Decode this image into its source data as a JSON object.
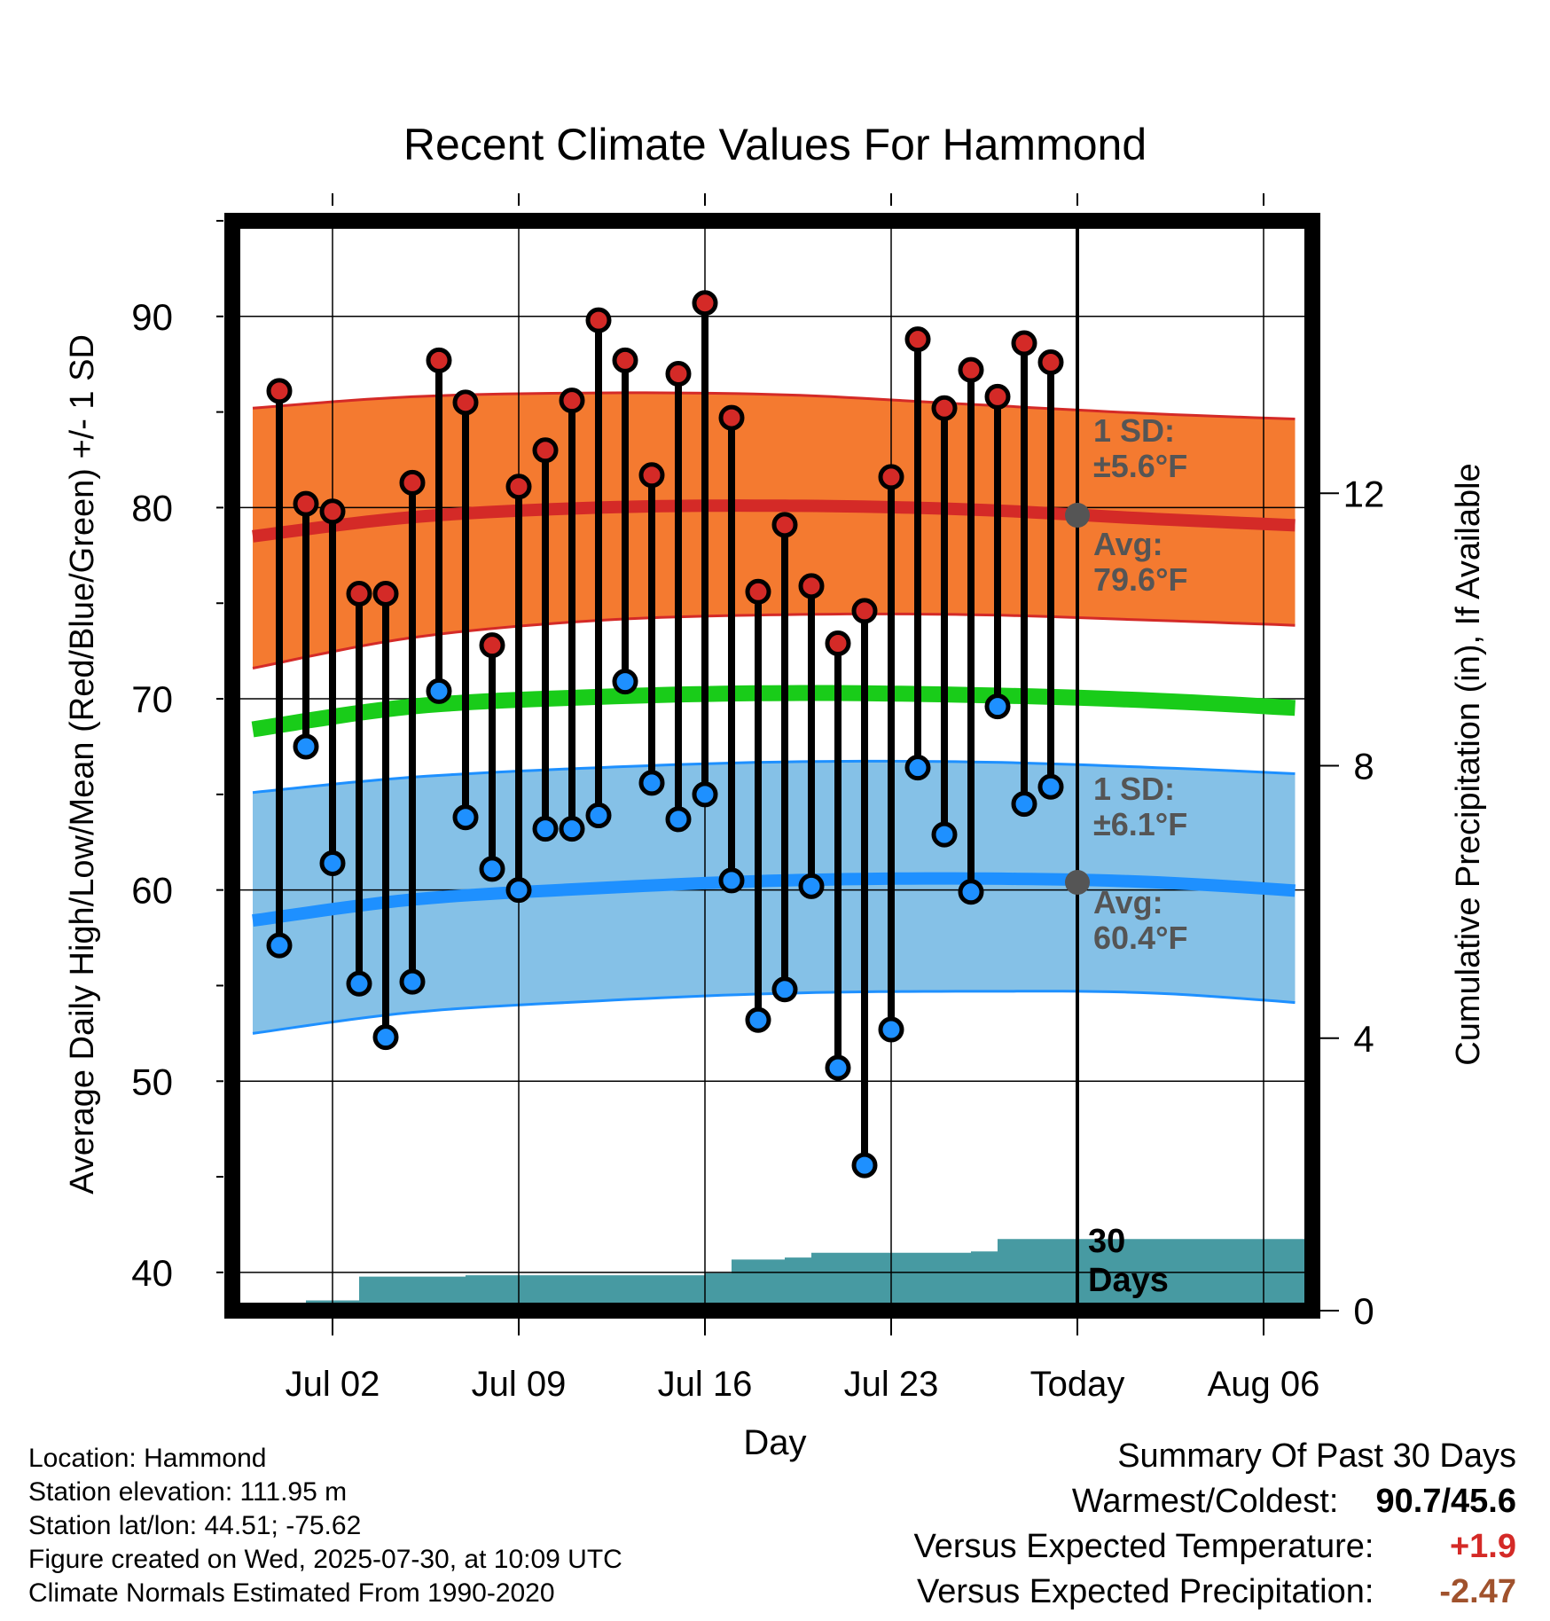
{
  "chart_data": {
    "type": "range-bar",
    "title": "Recent Climate Values For Hammond",
    "xlabel": "Day",
    "ylabel_left": "Average Daily High/Low/Mean (Red/Blue/Green) +/- 1 SD",
    "ylabel_right": "Cumulative Precipitation (in), If Available",
    "x_ticks": [
      "Jul 02",
      "Jul 09",
      "Jul 16",
      "Jul 23",
      "Today",
      "Aug 06"
    ],
    "ylim_left": [
      38,
      95
    ],
    "yticks_left": [
      40,
      50,
      60,
      70,
      80,
      90
    ],
    "ylim_right": [
      0,
      16
    ],
    "yticks_right": [
      0,
      4,
      8,
      12
    ],
    "grid": true,
    "x_start": "2025-06-29",
    "x_end": "2025-08-10",
    "today": "2025-07-30",
    "daily": {
      "dates": [
        "2025-06-30",
        "2025-07-01",
        "2025-07-02",
        "2025-07-03",
        "2025-07-04",
        "2025-07-05",
        "2025-07-06",
        "2025-07-07",
        "2025-07-08",
        "2025-07-09",
        "2025-07-10",
        "2025-07-11",
        "2025-07-12",
        "2025-07-13",
        "2025-07-14",
        "2025-07-15",
        "2025-07-16",
        "2025-07-17",
        "2025-07-18",
        "2025-07-19",
        "2025-07-20",
        "2025-07-21",
        "2025-07-22",
        "2025-07-23",
        "2025-07-24",
        "2025-07-25",
        "2025-07-26",
        "2025-07-27",
        "2025-07-28",
        "2025-07-29"
      ],
      "high": [
        86.1,
        80.2,
        79.8,
        75.5,
        75.5,
        81.3,
        87.7,
        85.5,
        72.8,
        81.1,
        83.0,
        85.6,
        89.8,
        87.7,
        81.7,
        87.0,
        90.7,
        84.7,
        75.6,
        79.1,
        75.9,
        72.9,
        74.6,
        81.6,
        88.8,
        85.2,
        87.2,
        85.8,
        88.6,
        87.6
      ],
      "low": [
        57.1,
        67.5,
        61.4,
        55.1,
        52.3,
        55.2,
        70.4,
        63.8,
        61.1,
        60.0,
        63.2,
        63.2,
        63.9,
        70.9,
        65.6,
        63.7,
        65.0,
        60.5,
        53.2,
        54.8,
        60.2,
        50.7,
        45.6,
        52.7,
        66.4,
        62.9,
        59.9,
        69.6,
        64.5,
        65.4
      ]
    },
    "normals": {
      "dates": [
        "2025-06-29",
        "2025-07-05",
        "2025-07-12",
        "2025-07-19",
        "2025-07-26",
        "2025-08-02",
        "2025-08-10"
      ],
      "high_avg": [
        78.5,
        79.5,
        80.0,
        80.1,
        79.9,
        79.4,
        78.9
      ],
      "high_upper": [
        85.2,
        85.8,
        86.0,
        85.9,
        85.4,
        84.9,
        84.5
      ],
      "high_lower": [
        71.6,
        73.2,
        74.1,
        74.4,
        74.4,
        74.1,
        73.7
      ],
      "mean_avg": [
        68.4,
        69.6,
        70.1,
        70.3,
        70.2,
        69.9,
        69.3
      ],
      "low_avg": [
        58.4,
        59.5,
        60.1,
        60.5,
        60.6,
        60.4,
        59.7
      ],
      "low_upper": [
        65.1,
        65.9,
        66.4,
        66.7,
        66.7,
        66.4,
        65.9
      ],
      "low_lower": [
        52.5,
        53.6,
        54.2,
        54.6,
        54.7,
        54.6,
        53.8
      ]
    },
    "precip_cumulative": {
      "dates": [
        "2025-06-30",
        "2025-07-01",
        "2025-07-02",
        "2025-07-03",
        "2025-07-04",
        "2025-07-05",
        "2025-07-06",
        "2025-07-07",
        "2025-07-08",
        "2025-07-09",
        "2025-07-10",
        "2025-07-11",
        "2025-07-12",
        "2025-07-13",
        "2025-07-14",
        "2025-07-15",
        "2025-07-16",
        "2025-07-17",
        "2025-07-18",
        "2025-07-19",
        "2025-07-20",
        "2025-07-21",
        "2025-07-22",
        "2025-07-23",
        "2025-07-24",
        "2025-07-25",
        "2025-07-26",
        "2025-07-27",
        "2025-07-28",
        "2025-07-29",
        "2025-07-30",
        "2025-08-10"
      ],
      "values": [
        0.0,
        0.15,
        0.15,
        0.5,
        0.5,
        0.5,
        0.5,
        0.52,
        0.52,
        0.52,
        0.52,
        0.52,
        0.52,
        0.52,
        0.52,
        0.52,
        0.55,
        0.75,
        0.75,
        0.78,
        0.85,
        0.85,
        0.85,
        0.85,
        0.85,
        0.85,
        0.87,
        1.05,
        1.05,
        1.05,
        1.05,
        1.05
      ]
    },
    "annotations": {
      "high_sd_label": "1 SD:",
      "high_sd_value": "±5.6°F",
      "high_avg_label": "Avg:",
      "high_avg_value": "79.6°F",
      "low_sd_label": "1 SD:",
      "low_sd_value": "±6.1°F",
      "low_avg_label": "Avg:",
      "low_avg_value": "60.4°F",
      "today_high_avg": 79.6,
      "today_low_avg": 60.4,
      "days_label_1": "30",
      "days_label_2": "Days"
    },
    "colors": {
      "high_band": "#f47a30",
      "high_line": "#d42a27",
      "mean_line": "#19cc19",
      "low_band": "#85c1e7",
      "low_line": "#1e90ff",
      "precip": "#479aa2",
      "high_marker": "#d42a27",
      "low_marker": "#1e90ff",
      "avg_marker": "#555555",
      "annotation_text": "#555555"
    }
  },
  "footer": {
    "location": "Location: Hammond",
    "elevation": "Station elevation: 111.95 m",
    "latlon": "Station lat/lon: 44.51; -75.62",
    "created": "Figure created on Wed, 2025-07-30, at 10:09 UTC",
    "normals": "Climate Normals Estimated From 1990-2020"
  },
  "summary": {
    "title": "Summary Of Past 30 Days",
    "warm_cold_label": "Warmest/Coldest:",
    "warm_cold_value": "90.7/45.6",
    "temp_label": "Versus Expected Temperature:",
    "temp_value": "+1.9",
    "temp_color": "#d42a27",
    "precip_label": "Versus Expected Precipitation:",
    "precip_value": "-2.47",
    "precip_color": "#a0522d"
  }
}
